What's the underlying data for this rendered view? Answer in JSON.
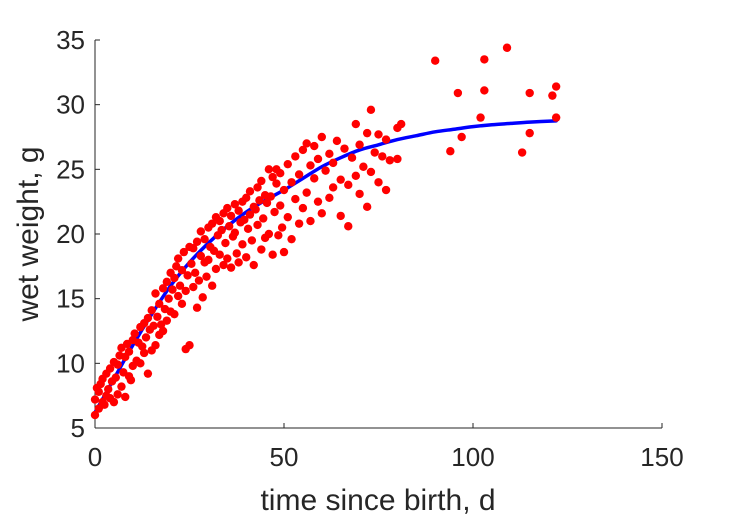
{
  "chart_data": {
    "type": "scatter",
    "xlabel": "time since birth, d",
    "ylabel": "wet weight, g",
    "xlim": [
      0,
      150
    ],
    "ylim": [
      5,
      35
    ],
    "xticks": [
      "0",
      "50",
      "100",
      "150"
    ],
    "yticks": [
      "5",
      "10",
      "15",
      "20",
      "25",
      "30",
      "35"
    ],
    "grid": false,
    "series": [
      {
        "type": "scatter",
        "color": "#ff0000",
        "points": [
          [
            0,
            6.0
          ],
          [
            0,
            7.2
          ],
          [
            0.5,
            8.1
          ],
          [
            1,
            6.5
          ],
          [
            1,
            7.8
          ],
          [
            1.5,
            8.4
          ],
          [
            2,
            7.0
          ],
          [
            2,
            8.8
          ],
          [
            2.5,
            6.8
          ],
          [
            3,
            7.5
          ],
          [
            3,
            9.2
          ],
          [
            3.5,
            8.0
          ],
          [
            4,
            7.3
          ],
          [
            4,
            9.6
          ],
          [
            4.5,
            8.6
          ],
          [
            5,
            7.0
          ],
          [
            5,
            10.1
          ],
          [
            5.5,
            8.9
          ],
          [
            6,
            7.6
          ],
          [
            6,
            9.9
          ],
          [
            6.5,
            10.6
          ],
          [
            7,
            8.2
          ],
          [
            7,
            11.2
          ],
          [
            7.5,
            9.3
          ],
          [
            8,
            7.4
          ],
          [
            8,
            10.5
          ],
          [
            8.5,
            11.5
          ],
          [
            9,
            9.0
          ],
          [
            9,
            10.9
          ],
          [
            9.5,
            8.7
          ],
          [
            10,
            11.8
          ],
          [
            10,
            9.8
          ],
          [
            10.5,
            12.3
          ],
          [
            11,
            10.2
          ],
          [
            11.5,
            11.6
          ],
          [
            12,
            12.8
          ],
          [
            12,
            10.0
          ],
          [
            12.5,
            11.3
          ],
          [
            13,
            13.1
          ],
          [
            13,
            10.8
          ],
          [
            13.5,
            12.0
          ],
          [
            14,
            13.5
          ],
          [
            14,
            9.2
          ],
          [
            14.5,
            12.6
          ],
          [
            15,
            11.0
          ],
          [
            15,
            14.1
          ],
          [
            15.5,
            12.9
          ],
          [
            16,
            15.4
          ],
          [
            16,
            11.4
          ],
          [
            16.5,
            13.6
          ],
          [
            17,
            12.2
          ],
          [
            17,
            14.6
          ],
          [
            17.5,
            13.0
          ],
          [
            18,
            15.8
          ],
          [
            18,
            12.5
          ],
          [
            18.5,
            14.2
          ],
          [
            19,
            16.3
          ],
          [
            19,
            13.3
          ],
          [
            19.5,
            15.0
          ],
          [
            20,
            17.0
          ],
          [
            20,
            14.0
          ],
          [
            20.5,
            15.7
          ],
          [
            21,
            16.6
          ],
          [
            21,
            13.8
          ],
          [
            21.5,
            17.5
          ],
          [
            22,
            15.2
          ],
          [
            22,
            18.1
          ],
          [
            22.5,
            16.0
          ],
          [
            23,
            14.6
          ],
          [
            23,
            17.2
          ],
          [
            23.5,
            18.6
          ],
          [
            24,
            15.6
          ],
          [
            24,
            11.1
          ],
          [
            24.5,
            16.8
          ],
          [
            25,
            19.0
          ],
          [
            25,
            11.4
          ],
          [
            25.5,
            17.7
          ],
          [
            26,
            15.9
          ],
          [
            26,
            18.9
          ],
          [
            26.5,
            17.0
          ],
          [
            27,
            19.4
          ],
          [
            27,
            14.3
          ],
          [
            27.5,
            16.4
          ],
          [
            28,
            18.3
          ],
          [
            28,
            20.2
          ],
          [
            28.5,
            15.1
          ],
          [
            29,
            17.8
          ],
          [
            29,
            19.6
          ],
          [
            29.5,
            16.7
          ],
          [
            30,
            20.5
          ],
          [
            30,
            18.0
          ],
          [
            30.5,
            19.0
          ],
          [
            31,
            16.0
          ],
          [
            31,
            20.8
          ],
          [
            31.5,
            18.7
          ],
          [
            32,
            21.3
          ],
          [
            32,
            17.3
          ],
          [
            32.5,
            19.9
          ],
          [
            33,
            21.0
          ],
          [
            33,
            18.4
          ],
          [
            33.5,
            20.3
          ],
          [
            34,
            17.6
          ],
          [
            34,
            21.6
          ],
          [
            34.5,
            19.3
          ],
          [
            35,
            22.0
          ],
          [
            35,
            18.1
          ],
          [
            35.5,
            20.6
          ],
          [
            36,
            21.4
          ],
          [
            36,
            17.4
          ],
          [
            36.5,
            19.8
          ],
          [
            37,
            22.3
          ],
          [
            37,
            20.1
          ],
          [
            37.5,
            18.5
          ],
          [
            38,
            21.8
          ],
          [
            38,
            17.8
          ],
          [
            38.5,
            20.9
          ],
          [
            39,
            22.5
          ],
          [
            39,
            19.2
          ],
          [
            39.5,
            21.1
          ],
          [
            40,
            22.8
          ],
          [
            40,
            18.2
          ],
          [
            40.5,
            20.4
          ],
          [
            41,
            23.3
          ],
          [
            41,
            21.5
          ],
          [
            41.5,
            19.5
          ],
          [
            42,
            22.1
          ],
          [
            42,
            17.6
          ],
          [
            42.5,
            21.9
          ],
          [
            43,
            23.6
          ],
          [
            43,
            20.7
          ],
          [
            43.5,
            22.6
          ],
          [
            44,
            24.1
          ],
          [
            44,
            18.8
          ],
          [
            44.5,
            21.2
          ],
          [
            45,
            23.0
          ],
          [
            45,
            19.7
          ],
          [
            45.5,
            22.4
          ],
          [
            46,
            25.0
          ],
          [
            46,
            20.0
          ],
          [
            46.5,
            22.9
          ],
          [
            47,
            24.4
          ],
          [
            47,
            18.4
          ],
          [
            47.5,
            21.7
          ],
          [
            48,
            23.9
          ],
          [
            48,
            25.0
          ],
          [
            48.5,
            19.9
          ],
          [
            49,
            22.2
          ],
          [
            49,
            24.7
          ],
          [
            49.5,
            20.5
          ],
          [
            50,
            23.4
          ],
          [
            50,
            18.6
          ],
          [
            51,
            25.4
          ],
          [
            51,
            21.3
          ],
          [
            52,
            24.0
          ],
          [
            52,
            19.6
          ],
          [
            53,
            22.7
          ],
          [
            53,
            26.0
          ],
          [
            54,
            20.8
          ],
          [
            54,
            24.6
          ],
          [
            55,
            22.0
          ],
          [
            55,
            26.5
          ],
          [
            56,
            27.0
          ],
          [
            56,
            23.2
          ],
          [
            57,
            25.3
          ],
          [
            57,
            21.0
          ],
          [
            58,
            24.3
          ],
          [
            58,
            26.8
          ],
          [
            59,
            22.5
          ],
          [
            59,
            25.8
          ],
          [
            60,
            27.5
          ],
          [
            60,
            21.6
          ],
          [
            61,
            24.9
          ],
          [
            62,
            26.2
          ],
          [
            62,
            22.8
          ],
          [
            63,
            25.5
          ],
          [
            63,
            23.6
          ],
          [
            64,
            27.2
          ],
          [
            65,
            24.2
          ],
          [
            65,
            21.4
          ],
          [
            66,
            26.6
          ],
          [
            67,
            23.8
          ],
          [
            67,
            20.6
          ],
          [
            68,
            25.9
          ],
          [
            69,
            28.5
          ],
          [
            69,
            24.5
          ],
          [
            70,
            26.9
          ],
          [
            70,
            23.1
          ],
          [
            71,
            25.2
          ],
          [
            72,
            27.8
          ],
          [
            72,
            22.1
          ],
          [
            73,
            29.6
          ],
          [
            73,
            24.8
          ],
          [
            74,
            26.3
          ],
          [
            75,
            27.7
          ],
          [
            75,
            24.0
          ],
          [
            76,
            26.0
          ],
          [
            77,
            27.3
          ],
          [
            77,
            23.4
          ],
          [
            78,
            25.7
          ],
          [
            80,
            25.8
          ],
          [
            80,
            28.2
          ],
          [
            81,
            28.5
          ],
          [
            90,
            33.4
          ],
          [
            94,
            26.4
          ],
          [
            96,
            30.9
          ],
          [
            97,
            27.5
          ],
          [
            102,
            29.0
          ],
          [
            103,
            33.5
          ],
          [
            103,
            31.1
          ],
          [
            109,
            34.4
          ],
          [
            113,
            26.3
          ],
          [
            115,
            27.8
          ],
          [
            115,
            30.9
          ],
          [
            121,
            30.7
          ],
          [
            122,
            31.4
          ],
          [
            122,
            29.0
          ]
        ]
      },
      {
        "type": "line",
        "color": "#0000ff",
        "points": [
          [
            0,
            6.2
          ],
          [
            5,
            8.8
          ],
          [
            10,
            11.4
          ],
          [
            15,
            13.8
          ],
          [
            20,
            16.0
          ],
          [
            25,
            17.8
          ],
          [
            30,
            19.3
          ],
          [
            35,
            20.6
          ],
          [
            40,
            21.7
          ],
          [
            45,
            22.6
          ],
          [
            50,
            23.4
          ],
          [
            55,
            24.3
          ],
          [
            60,
            25.2
          ],
          [
            65,
            25.9
          ],
          [
            70,
            26.5
          ],
          [
            75,
            26.9
          ],
          [
            80,
            27.3
          ],
          [
            85,
            27.6
          ],
          [
            90,
            27.9
          ],
          [
            95,
            28.1
          ],
          [
            100,
            28.3
          ],
          [
            105,
            28.45
          ],
          [
            110,
            28.55
          ],
          [
            115,
            28.65
          ],
          [
            122,
            28.75
          ]
        ]
      }
    ]
  }
}
